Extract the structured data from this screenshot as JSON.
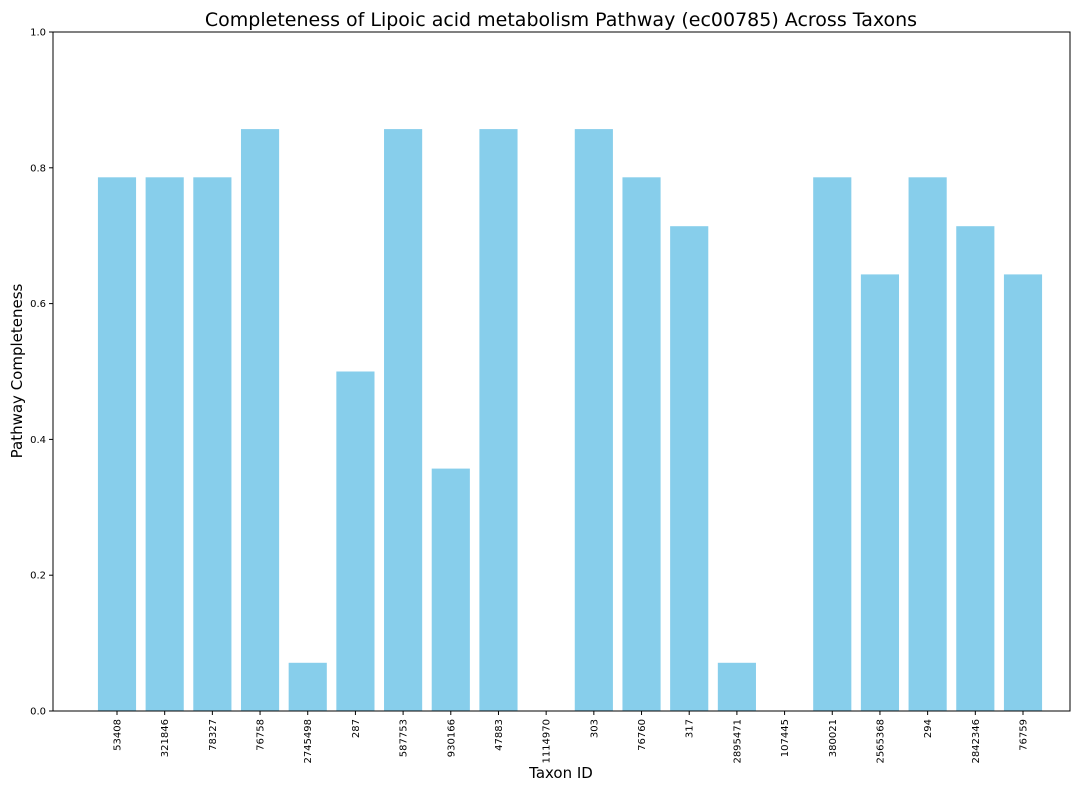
{
  "chart_data": {
    "type": "bar",
    "title": "Completeness of Lipoic acid metabolism Pathway (ec00785) Across Taxons",
    "xlabel": "Taxon ID",
    "ylabel": "Pathway Completeness",
    "ylim": [
      0,
      1.0
    ],
    "yticks": [
      "0.0",
      "0.2",
      "0.4",
      "0.6",
      "0.8",
      "1.0"
    ],
    "grid": false,
    "bar_color": "#87ceeb",
    "categories": [
      "53408",
      "321846",
      "78327",
      "76758",
      "2745498",
      "287",
      "587753",
      "930166",
      "47883",
      "1114970",
      "303",
      "76760",
      "317",
      "2895471",
      "107445",
      "380021",
      "2565368",
      "294",
      "2842346",
      "76759"
    ],
    "values": [
      0.786,
      0.786,
      0.786,
      0.857,
      0.071,
      0.5,
      0.857,
      0.357,
      0.857,
      0.0,
      0.857,
      0.786,
      0.714,
      0.071,
      0.0,
      0.786,
      0.643,
      0.786,
      0.714,
      0.643
    ]
  }
}
